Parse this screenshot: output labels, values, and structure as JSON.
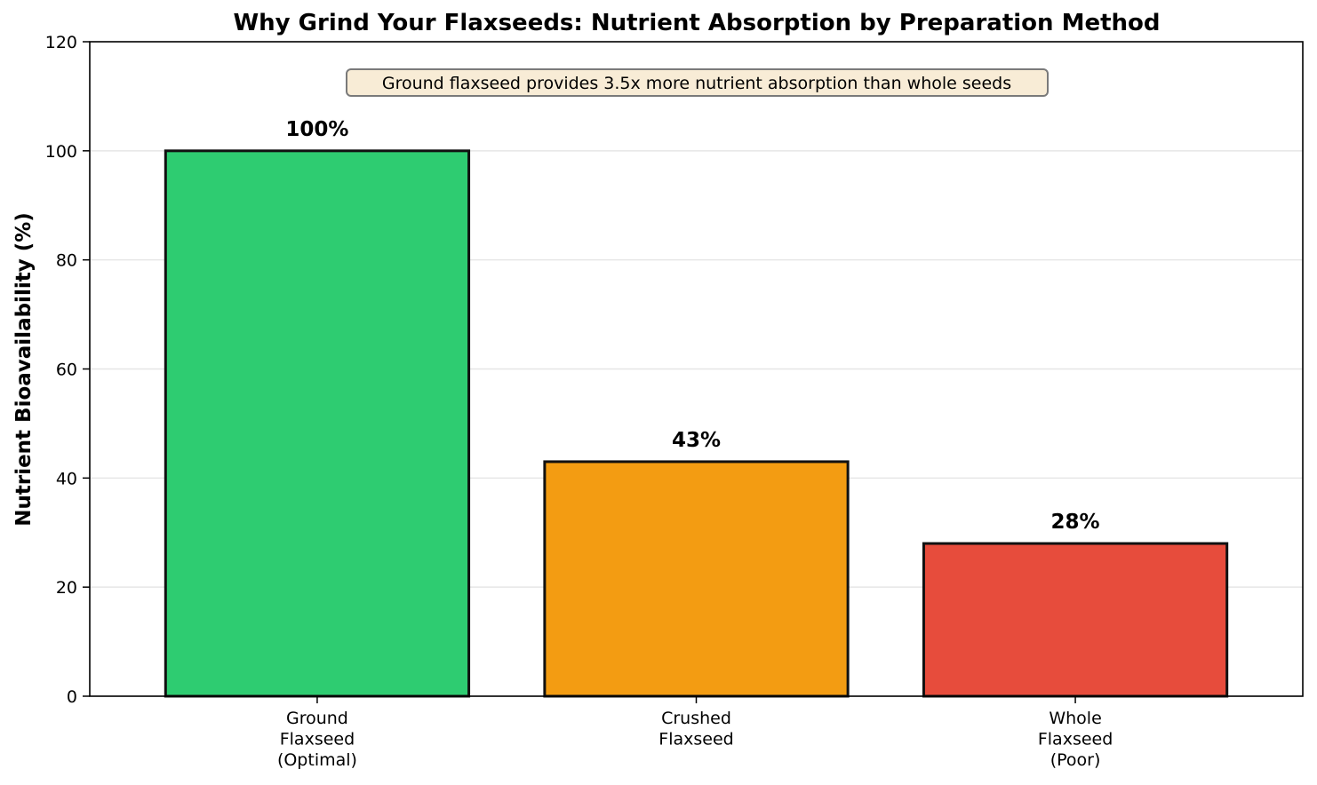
{
  "chart_data": {
    "type": "bar",
    "title": "Why Grind Your Flaxseeds: Nutrient Absorption by Preparation Method",
    "xlabel": "",
    "ylabel": "Nutrient Bioavailability (%)",
    "ylim": [
      0,
      120
    ],
    "yticks": [
      0,
      20,
      40,
      60,
      80,
      100,
      120
    ],
    "grid": "y",
    "categories": [
      [
        "Ground",
        "Flaxseed",
        "(Optimal)"
      ],
      [
        "Crushed",
        "Flaxseed"
      ],
      [
        "Whole",
        "Flaxseed",
        "(Poor)"
      ]
    ],
    "values": [
      100,
      43,
      28
    ],
    "value_labels": [
      "100%",
      "43%",
      "28%"
    ],
    "colors": [
      "#2ecc71",
      "#f39c12",
      "#e74c3c"
    ],
    "edge_color": "#111111",
    "annotation": "Ground flaxseed provides 3.5x more nutrient absorption than whole seeds"
  }
}
